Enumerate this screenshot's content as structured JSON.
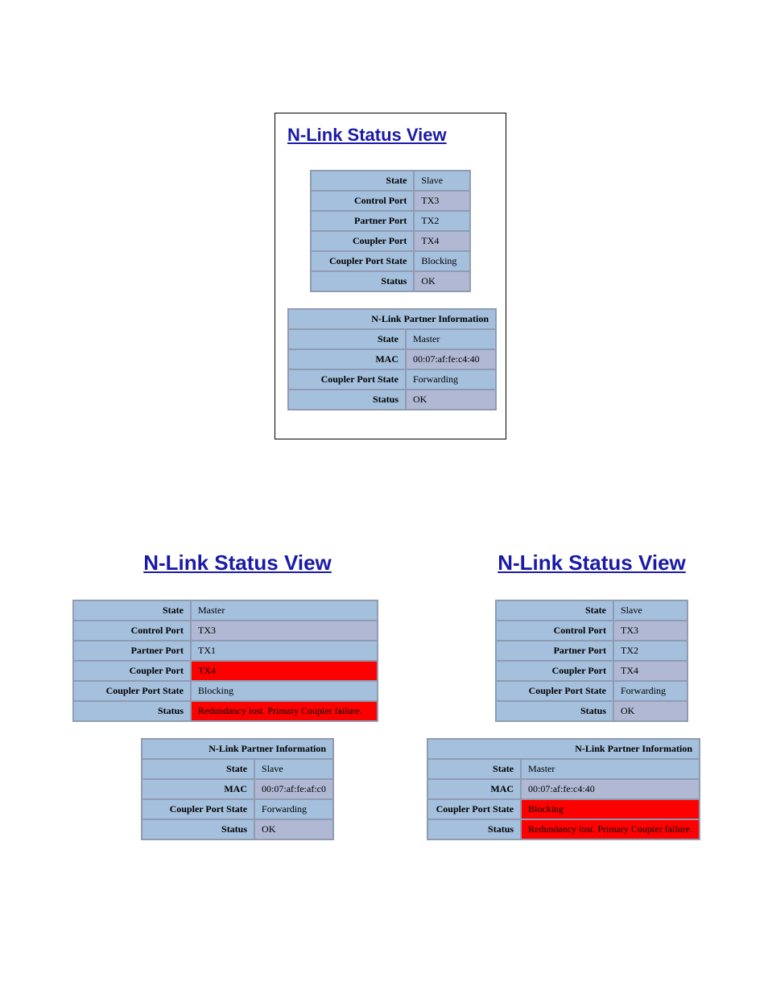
{
  "colors": {
    "title": "#1a1aa8",
    "header_bg": "#7d95c1",
    "label_bg": "#a5c0dd",
    "label_alt_bg": "#9aa4c8",
    "val_blue": "#a5c0dd",
    "val_purple": "#b0b8d4",
    "val_red": "#ff0000",
    "border": "#8f9bb3"
  },
  "top_panel": {
    "title": "N-Link Status View",
    "main": {
      "state": {
        "label": "State",
        "value": "Slave"
      },
      "control_port": {
        "label": "Control Port",
        "value": "TX3"
      },
      "partner_port": {
        "label": "Partner Port",
        "value": "TX2"
      },
      "coupler_port": {
        "label": "Coupler Port",
        "value": "TX4"
      },
      "coupler_state": {
        "label": "Coupler Port State",
        "value": "Blocking"
      },
      "status": {
        "label": "Status",
        "value": "OK"
      }
    },
    "partner": {
      "header": "N-Link Partner Information",
      "state": {
        "label": "State",
        "value": "Master"
      },
      "mac": {
        "label": "MAC",
        "value": "00:07:af:fe:c4:40"
      },
      "coupler_state": {
        "label": "Coupler Port State",
        "value": "Forwarding"
      },
      "status": {
        "label": "Status",
        "value": "OK"
      }
    }
  },
  "left_panel": {
    "title": "N-Link Status View",
    "main": {
      "state": {
        "label": "State",
        "value": "Master"
      },
      "control_port": {
        "label": "Control Port",
        "value": "TX3"
      },
      "partner_port": {
        "label": "Partner Port",
        "value": "TX1"
      },
      "coupler_port": {
        "label": "Coupler Port",
        "value": "TX4",
        "alert": true
      },
      "coupler_state": {
        "label": "Coupler Port State",
        "value": "Blocking"
      },
      "status": {
        "label": "Status",
        "value": "Redundancy lost. Primary Coupler failure.",
        "alert": true
      }
    },
    "partner": {
      "header": "N-Link Partner Information",
      "state": {
        "label": "State",
        "value": "Slave"
      },
      "mac": {
        "label": "MAC",
        "value": "00:07:af:fe:af:c0"
      },
      "coupler_state": {
        "label": "Coupler Port State",
        "value": "Forwarding"
      },
      "status": {
        "label": "Status",
        "value": "OK"
      }
    }
  },
  "right_panel": {
    "title": "N-Link Status View",
    "main": {
      "state": {
        "label": "State",
        "value": "Slave"
      },
      "control_port": {
        "label": "Control Port",
        "value": "TX3"
      },
      "partner_port": {
        "label": "Partner Port",
        "value": "TX2"
      },
      "coupler_port": {
        "label": "Coupler Port",
        "value": "TX4"
      },
      "coupler_state": {
        "label": "Coupler Port State",
        "value": "Forwarding"
      },
      "status": {
        "label": "Status",
        "value": "OK"
      }
    },
    "partner": {
      "header": "N-Link Partner Information",
      "state": {
        "label": "State",
        "value": "Master"
      },
      "mac": {
        "label": "MAC",
        "value": "00:07:af:fe:c4:40"
      },
      "coupler_state": {
        "label": "Coupler Port State",
        "value": "Blocking",
        "alert": true
      },
      "status": {
        "label": "Status",
        "value": "Redundancy lost. Primary Coupler failure.",
        "alert": true
      }
    }
  }
}
